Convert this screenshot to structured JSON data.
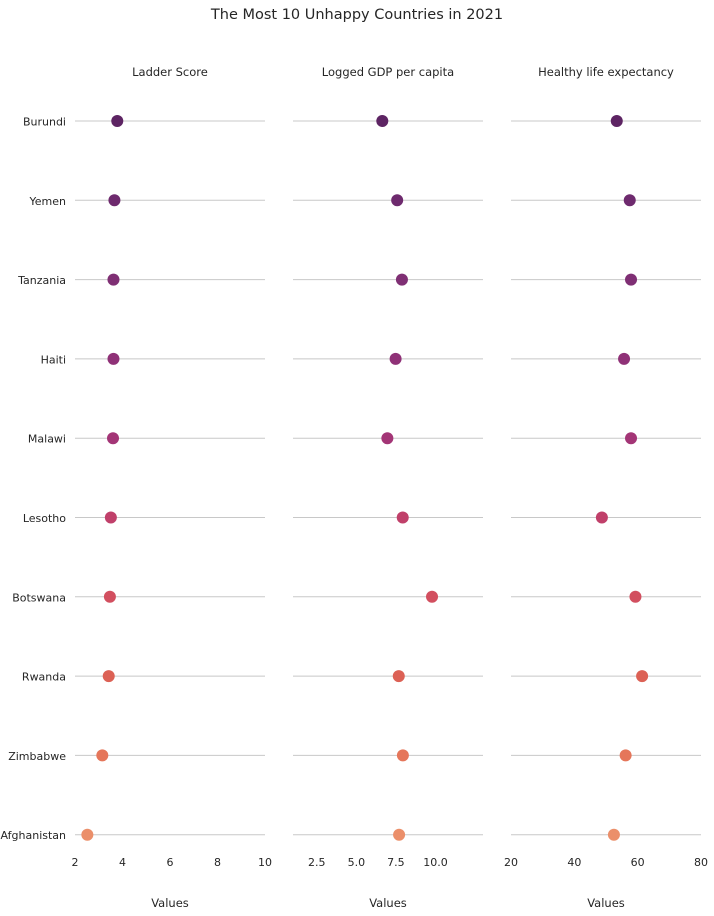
{
  "chart_data": {
    "type": "scatter",
    "title": "The Most 10 Unhappy Countries in 2021",
    "countries": [
      "Burundi",
      "Yemen",
      "Tanzania",
      "Haiti",
      "Malawi",
      "Lesotho",
      "Botswana",
      "Rwanda",
      "Zimbabwe",
      "Afghanistan"
    ],
    "colors": [
      "#5d2463",
      "#6e2a6e",
      "#7f2f74",
      "#8f3177",
      "#a33576",
      "#c0406a",
      "#d24f5f",
      "#dc6155",
      "#e5765a",
      "#eb8f6a"
    ],
    "panels": [
      {
        "title": "Ladder Score",
        "xlabel": "Values",
        "xlim": [
          2,
          10
        ],
        "ticks": [
          2,
          4,
          6,
          8,
          10
        ],
        "tick_labels": [
          "2",
          "4",
          "6",
          "8",
          "10"
        ],
        "values": [
          3.78,
          3.66,
          3.62,
          3.62,
          3.6,
          3.51,
          3.47,
          3.42,
          3.15,
          2.52
        ]
      },
      {
        "title": "Logged GDP per capita",
        "xlabel": "Values",
        "xlim": [
          1.0,
          13.0
        ],
        "ticks": [
          2.5,
          5.0,
          7.5,
          10.0
        ],
        "tick_labels": [
          "2.5",
          "5.0",
          "7.5",
          "10.0"
        ],
        "values": [
          6.64,
          7.58,
          7.88,
          7.48,
          6.96,
          7.93,
          9.78,
          7.68,
          7.94,
          7.7
        ]
      },
      {
        "title": "Healthy life expectancy",
        "xlabel": "Values",
        "xlim": [
          20,
          80
        ],
        "ticks": [
          20,
          40,
          60,
          80
        ],
        "tick_labels": [
          "20",
          "40",
          "60",
          "80"
        ],
        "values": [
          53.4,
          57.5,
          57.9,
          55.7,
          57.9,
          48.7,
          59.3,
          61.4,
          56.2,
          52.5
        ]
      }
    ]
  }
}
